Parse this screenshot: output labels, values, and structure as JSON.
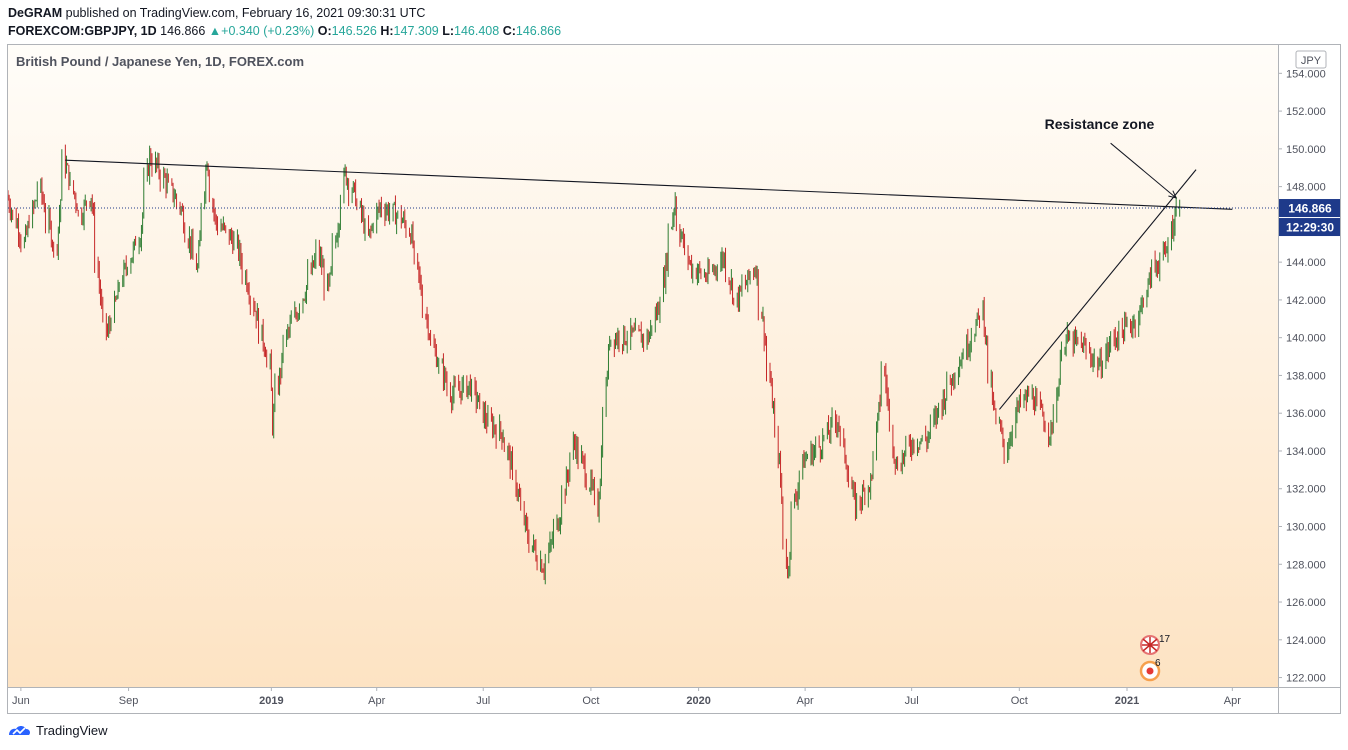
{
  "header": {
    "publisher": "DeGRAM",
    "published_line": "published on TradingView.com, February 16, 2021 09:30:31 UTC",
    "symbol": "FOREXCOM:GBPJPY, 1D",
    "last": "146.866",
    "change": "+0.340 (+0.23%)",
    "o_label": "O:",
    "o_value": "146.526",
    "h_label": "H:",
    "h_value": "147.309",
    "l_label": "L:",
    "l_value": "146.408",
    "c_label": "C:",
    "c_value": "146.866"
  },
  "footer": {
    "brand": "TradingView"
  },
  "colors": {
    "up": "#26a69a",
    "down": "#ef5350",
    "bull_candle": "#2e7d32",
    "bear_candle": "#c62828",
    "bg_top": "#fffdf9",
    "bg_bottom": "#fde3c3"
  },
  "chart_data": {
    "type": "candlestick",
    "title": "British Pound / Japanese Yen, 1D, FOREX.com",
    "currency": "JPY",
    "ylim": [
      121.5,
      155.5
    ],
    "y_ticks": [
      "122.000",
      "124.000",
      "126.000",
      "128.000",
      "130.000",
      "132.000",
      "134.000",
      "136.000",
      "138.000",
      "140.000",
      "142.000",
      "144.000",
      "146.000",
      "148.000",
      "150.000",
      "152.000",
      "154.000"
    ],
    "x_ticks": [
      {
        "label": "Jun",
        "date": "2018-06-01",
        "bold": false
      },
      {
        "label": "Sep",
        "date": "2018-09-01",
        "bold": false
      },
      {
        "label": "2019",
        "date": "2019-01-01",
        "bold": true
      },
      {
        "label": "Apr",
        "date": "2019-04-01",
        "bold": false
      },
      {
        "label": "Jul",
        "date": "2019-07-01",
        "bold": false
      },
      {
        "label": "Oct",
        "date": "2019-10-01",
        "bold": false
      },
      {
        "label": "2020",
        "date": "2020-01-01",
        "bold": true
      },
      {
        "label": "Apr",
        "date": "2020-04-01",
        "bold": false
      },
      {
        "label": "Jul",
        "date": "2020-07-01",
        "bold": false
      },
      {
        "label": "Oct",
        "date": "2020-10-01",
        "bold": false
      },
      {
        "label": "2021",
        "date": "2021-01-01",
        "bold": true
      },
      {
        "label": "Apr",
        "date": "2021-04-01",
        "bold": false
      }
    ],
    "x_range": [
      "2018-05-21",
      "2021-05-10"
    ],
    "last_price": "146.866",
    "last_price_value": 146.866,
    "countdown": "12:29:30",
    "trendlines": [
      {
        "name": "resistance",
        "from": {
          "date": "2018-07-09",
          "price": 149.4
        },
        "to": {
          "date": "2021-04-01",
          "price": 146.8
        }
      },
      {
        "name": "support",
        "from": {
          "date": "2020-09-14",
          "price": 136.2
        },
        "to": {
          "date": "2021-03-01",
          "price": 148.9
        }
      }
    ],
    "annotation": {
      "text": "Resistance zone",
      "target": {
        "date": "2021-02-12",
        "price": 147.4
      },
      "arrow_from": {
        "date": "2020-12-18",
        "price": 150.3
      }
    },
    "badges": [
      {
        "label": "17"
      },
      {
        "label": "6"
      }
    ],
    "series": [
      {
        "name": "GBPJPY",
        "path": [
          [
            "2018-05-21",
            147.5
          ],
          [
            "2018-06-05",
            145.0
          ],
          [
            "2018-06-18",
            148.0
          ],
          [
            "2018-07-02",
            144.5
          ],
          [
            "2018-07-09",
            149.4
          ],
          [
            "2018-07-23",
            146.5
          ],
          [
            "2018-08-01",
            147.6
          ],
          [
            "2018-08-10",
            141.5
          ],
          [
            "2018-08-15",
            140.2
          ],
          [
            "2018-08-28",
            143.2
          ],
          [
            "2018-09-12",
            145.5
          ],
          [
            "2018-09-20",
            149.6
          ],
          [
            "2018-10-01",
            148.6
          ],
          [
            "2018-10-16",
            147.0
          ],
          [
            "2018-10-31",
            143.6
          ],
          [
            "2018-11-08",
            149.6
          ],
          [
            "2018-11-15",
            146.2
          ],
          [
            "2018-12-03",
            145.0
          ],
          [
            "2018-12-17",
            142.0
          ],
          [
            "2019-01-01",
            138.5
          ],
          [
            "2019-01-03",
            135.5
          ],
          [
            "2019-01-14",
            139.9
          ],
          [
            "2019-01-25",
            141.5
          ],
          [
            "2019-02-11",
            144.5
          ],
          [
            "2019-02-20",
            142.5
          ],
          [
            "2019-03-06",
            148.7
          ],
          [
            "2019-03-15",
            147.5
          ],
          [
            "2019-03-26",
            145.3
          ],
          [
            "2019-04-05",
            147.0
          ],
          [
            "2019-04-22",
            146.4
          ],
          [
            "2019-05-01",
            145.6
          ],
          [
            "2019-05-10",
            142.5
          ],
          [
            "2019-05-20",
            139.5
          ],
          [
            "2019-06-05",
            137.0
          ],
          [
            "2019-06-21",
            137.5
          ],
          [
            "2019-07-05",
            135.6
          ],
          [
            "2019-07-19",
            134.9
          ],
          [
            "2019-07-31",
            132.0
          ],
          [
            "2019-08-09",
            129.5
          ],
          [
            "2019-08-23",
            127.8
          ],
          [
            "2019-09-05",
            130.5
          ],
          [
            "2019-09-18",
            134.5
          ],
          [
            "2019-09-30",
            132.5
          ],
          [
            "2019-10-08",
            131.0
          ],
          [
            "2019-10-18",
            140.0
          ],
          [
            "2019-11-05",
            140.1
          ],
          [
            "2019-11-20",
            140.0
          ],
          [
            "2019-12-01",
            142.0
          ],
          [
            "2019-12-13",
            147.4
          ],
          [
            "2019-12-17",
            145.6
          ],
          [
            "2019-12-27",
            143.7
          ],
          [
            "2020-01-10",
            143.2
          ],
          [
            "2020-01-24",
            144.3
          ],
          [
            "2020-02-03",
            141.9
          ],
          [
            "2020-02-20",
            143.8
          ],
          [
            "2020-02-28",
            139.8
          ],
          [
            "2020-03-10",
            134.0
          ],
          [
            "2020-03-18",
            127.5
          ],
          [
            "2020-03-23",
            131.0
          ],
          [
            "2020-04-01",
            133.5
          ],
          [
            "2020-04-15",
            134.3
          ],
          [
            "2020-04-30",
            135.7
          ],
          [
            "2020-05-15",
            131.0
          ],
          [
            "2020-05-29",
            132.5
          ],
          [
            "2020-06-08",
            138.5
          ],
          [
            "2020-06-19",
            133.1
          ],
          [
            "2020-07-03",
            134.5
          ],
          [
            "2020-07-15",
            134.6
          ],
          [
            "2020-08-03",
            137.5
          ],
          [
            "2020-08-20",
            139.8
          ],
          [
            "2020-09-01",
            141.5
          ],
          [
            "2020-09-10",
            136.2
          ],
          [
            "2020-09-21",
            134.0
          ],
          [
            "2020-10-01",
            136.3
          ],
          [
            "2020-10-12",
            137.0
          ],
          [
            "2020-10-30",
            134.9
          ],
          [
            "2020-11-09",
            139.9
          ],
          [
            "2020-11-25",
            139.6
          ],
          [
            "2020-12-10",
            138.5
          ],
          [
            "2020-12-21",
            139.9
          ],
          [
            "2021-01-11",
            141.0
          ],
          [
            "2021-01-25",
            143.7
          ],
          [
            "2021-02-05",
            144.5
          ],
          [
            "2021-02-12",
            146.5
          ],
          [
            "2021-02-16",
            146.9
          ]
        ]
      }
    ]
  }
}
